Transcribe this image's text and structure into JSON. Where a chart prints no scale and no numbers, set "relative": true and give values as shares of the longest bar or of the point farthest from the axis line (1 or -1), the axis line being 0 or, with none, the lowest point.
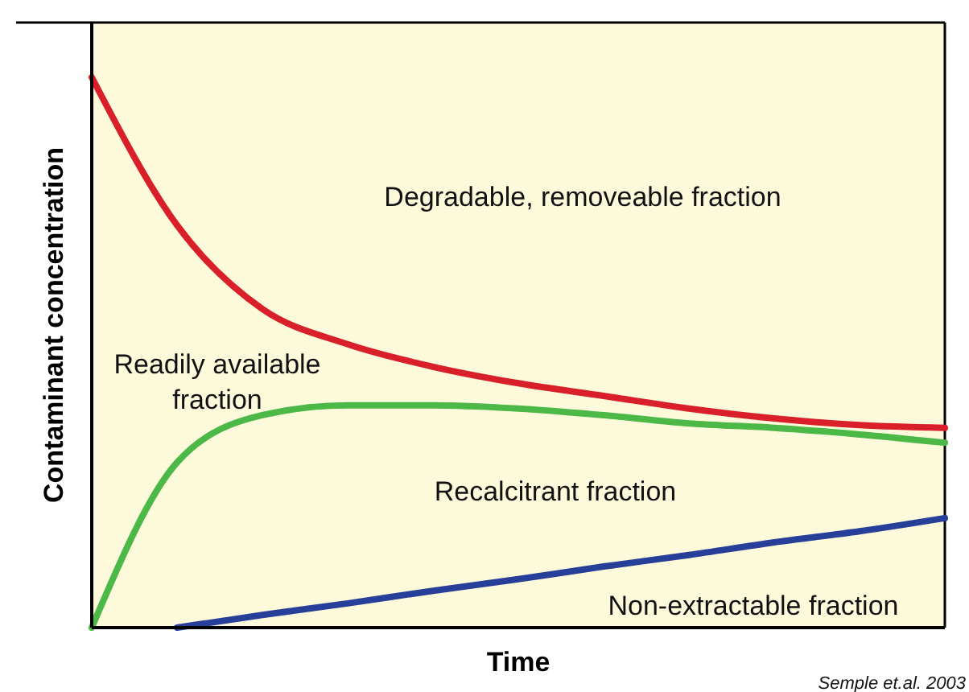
{
  "chart_data": {
    "type": "line",
    "relative": true,
    "xlabel": "Time",
    "ylabel": "Contaminant concentration",
    "categories": [
      null,
      null,
      null,
      null,
      null,
      null,
      null,
      null,
      null,
      null,
      null
    ],
    "series": [
      {
        "color": "#d9202a",
        "values": [
          1,
          0.731,
          0.579,
          0.515,
          0.474,
          0.444,
          0.421,
          0.398,
          0.38,
          0.368,
          0.363
        ]
      },
      {
        "color": "#4cb848",
        "values": [
          0,
          0.3,
          0.386,
          0.404,
          0.404,
          0.398,
          0.386,
          0.371,
          0.363,
          0.351,
          0.336
        ]
      },
      {
        "color": "#283f99",
        "values": [
          null,
          0,
          0.023,
          0.044,
          0.067,
          0.088,
          0.111,
          0.132,
          0.155,
          0.175,
          0.199
        ]
      }
    ],
    "annotations": [
      "Degradable, removeable fraction",
      "Readily available fraction",
      "Recalcitrant fraction",
      "Non-extractable fraction",
      "Semple et.al. 2003"
    ]
  }
}
